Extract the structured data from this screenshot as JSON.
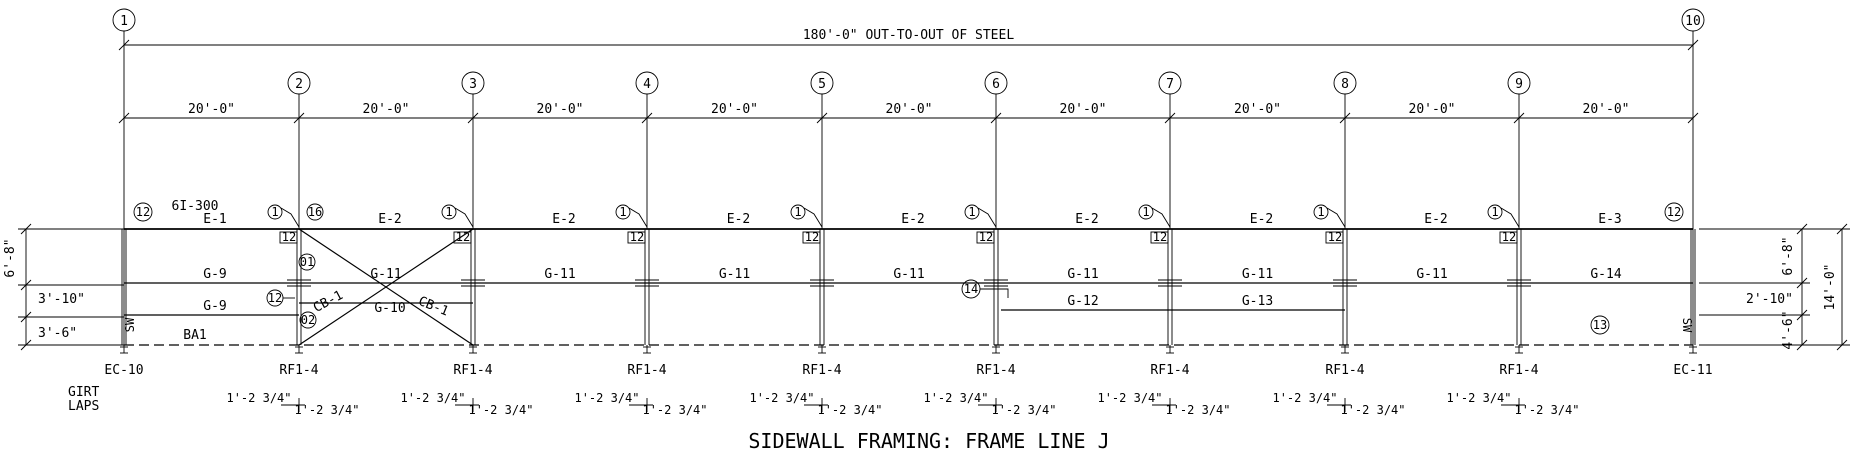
{
  "title": "SIDEWALL FRAMING: FRAME LINE J",
  "overall_dimension": "180'-0\" OUT-TO-OUT OF STEEL",
  "grid_lines": [
    "1",
    "2",
    "3",
    "4",
    "5",
    "6",
    "7",
    "8",
    "9",
    "10"
  ],
  "bay_dimension": "20'-0\"",
  "eave_strut_note": "6I-300",
  "eave_members": [
    "E-1",
    "E-2",
    "E-2",
    "E-2",
    "E-2",
    "E-2",
    "E-2",
    "E-2",
    "E-3"
  ],
  "connection_tag": "1",
  "connection_label": "12",
  "end_tag": "12",
  "callouts": {
    "c16": "16",
    "c01": "01",
    "c02": "02",
    "c12": "12",
    "c14": "14",
    "c13": "13"
  },
  "girts_upper": [
    "G-9",
    "G-11",
    "G-11",
    "G-11",
    "G-11",
    "G-11",
    "G-11",
    "G-11",
    "G-14"
  ],
  "girts_lower": {
    "bay1": "G-9",
    "bay2": "G-10",
    "bay6": "G-12",
    "bay7": "G-13"
  },
  "brace_labels": [
    "CB-1",
    "CB-1"
  ],
  "base_angle": "BA1",
  "sw_label": "SW",
  "columns": [
    "EC-10",
    "RF1-4",
    "RF1-4",
    "RF1-4",
    "RF1-4",
    "RF1-4",
    "RF1-4",
    "RF1-4",
    "RF1-4",
    "EC-11"
  ],
  "girt_laps_label": [
    "GIRT",
    "LAPS"
  ],
  "lap_dim": "1'-2 3/4\"",
  "left_dims": [
    "6'-8\"",
    "3'-10\"",
    "3'-6\""
  ],
  "right_dims": [
    "6'-8\"",
    "2'-10\"",
    "4'-6\""
  ],
  "height_dim": "14'-0\""
}
